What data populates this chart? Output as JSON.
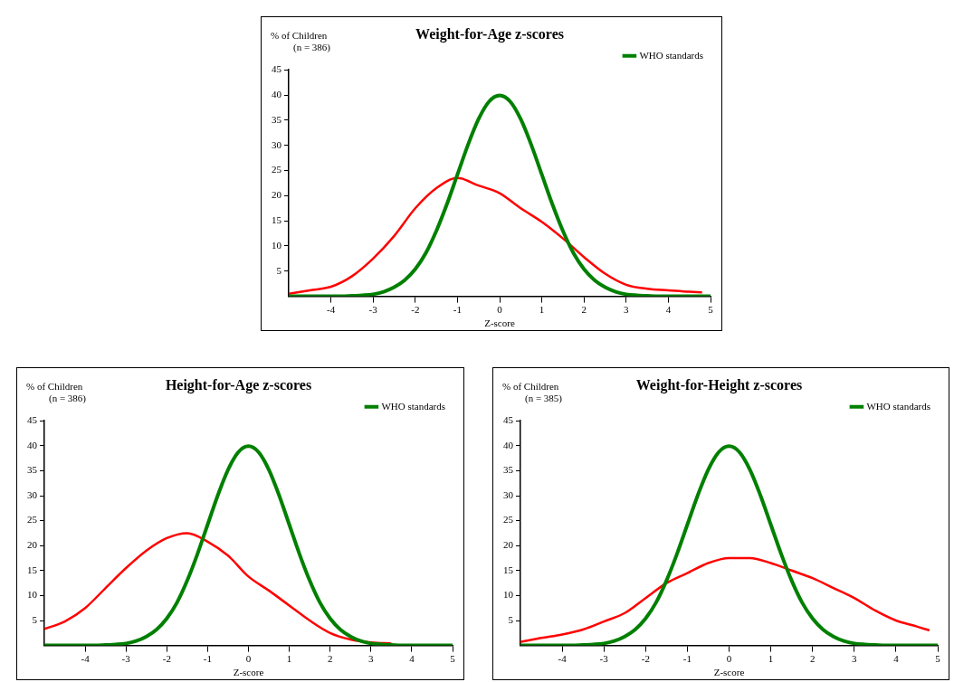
{
  "chart_data": [
    {
      "type": "line",
      "title": "Weight-for-Age z-scores",
      "subtitle": "(n = 386)",
      "ylabel": "% of Children",
      "xlabel": "Z-score",
      "xlim": [
        -5,
        5
      ],
      "xticks": [
        -4,
        -3,
        -2,
        -1,
        0,
        1,
        2,
        3,
        4,
        5
      ],
      "ylim": [
        0,
        45
      ],
      "yticks": [
        5,
        10,
        15,
        20,
        25,
        30,
        35,
        40,
        45
      ],
      "legend": "top right",
      "series": [
        {
          "name": "WHO standards",
          "color": "#008000",
          "x": [
            -5,
            -4.75,
            -4.5,
            -4.25,
            -4,
            -3.75,
            -3.5,
            -3.25,
            -3,
            -2.75,
            -2.5,
            -2.25,
            -2,
            -1.75,
            -1.5,
            -1.25,
            -1,
            -0.75,
            -0.5,
            -0.25,
            0,
            0.25,
            0.5,
            0.75,
            1,
            1.25,
            1.5,
            1.75,
            2,
            2.25,
            2.5,
            2.75,
            3,
            3.25,
            3.5,
            3.75,
            4,
            4.25,
            4.5,
            4.75,
            5
          ],
          "values": [
            0,
            0,
            0,
            0,
            0,
            0,
            0.1,
            0.2,
            0.4,
            0.9,
            1.8,
            3.2,
            5.4,
            8.6,
            13,
            18.3,
            24.2,
            30.1,
            35.2,
            38.7,
            39.9,
            38.7,
            35.2,
            30.1,
            24.2,
            18.3,
            13,
            8.6,
            5.4,
            3.2,
            1.8,
            0.9,
            0.4,
            0.2,
            0.1,
            0,
            0,
            0,
            0,
            0,
            0
          ]
        },
        {
          "color": "#ff0000",
          "x": [
            -5,
            -4.5,
            -4,
            -3.5,
            -3,
            -2.5,
            -2,
            -1.5,
            -1,
            -0.5,
            0,
            0.5,
            1,
            1.5,
            2,
            2.5,
            3,
            3.5,
            4,
            4.5,
            4.8
          ],
          "values": [
            0.5,
            1.2,
            1.9,
            4,
            7.5,
            12,
            17.5,
            21.5,
            23.5,
            22,
            20.5,
            17.5,
            14.8,
            11.5,
            7.8,
            4.5,
            2.3,
            1.5,
            1.2,
            0.9,
            0.8
          ]
        }
      ]
    },
    {
      "type": "line",
      "title": "Height-for-Age z-scores",
      "subtitle": "(n = 386)",
      "ylabel": "% of Children",
      "xlabel": "Z-score",
      "xlim": [
        -5,
        5
      ],
      "xticks": [
        -4,
        -3,
        -2,
        -1,
        0,
        1,
        2,
        3,
        4,
        5
      ],
      "ylim": [
        0,
        45
      ],
      "yticks": [
        5,
        10,
        15,
        20,
        25,
        30,
        35,
        40,
        45
      ],
      "legend": "top right",
      "series": [
        {
          "name": "WHO standards",
          "color": "#008000",
          "x": [
            -5,
            -4.75,
            -4.5,
            -4.25,
            -4,
            -3.75,
            -3.5,
            -3.25,
            -3,
            -2.75,
            -2.5,
            -2.25,
            -2,
            -1.75,
            -1.5,
            -1.25,
            -1,
            -0.75,
            -0.5,
            -0.25,
            0,
            0.25,
            0.5,
            0.75,
            1,
            1.25,
            1.5,
            1.75,
            2,
            2.25,
            2.5,
            2.75,
            3,
            3.25,
            3.5,
            3.75,
            4,
            4.25,
            4.5,
            4.75,
            5
          ],
          "values": [
            0,
            0,
            0,
            0,
            0,
            0,
            0.1,
            0.2,
            0.4,
            0.9,
            1.8,
            3.2,
            5.4,
            8.6,
            13,
            18.3,
            24.2,
            30.1,
            35.2,
            38.7,
            39.9,
            38.7,
            35.2,
            30.1,
            24.2,
            18.3,
            13,
            8.6,
            5.4,
            3.2,
            1.8,
            0.9,
            0.4,
            0.2,
            0.1,
            0,
            0,
            0,
            0,
            0,
            0
          ]
        },
        {
          "color": "#ff0000",
          "x": [
            -5,
            -4.5,
            -4,
            -3.5,
            -3,
            -2.5,
            -2,
            -1.5,
            -1,
            -0.5,
            0,
            0.5,
            1,
            1.5,
            2,
            2.5,
            3,
            3.5
          ],
          "values": [
            3.3,
            4.8,
            7.5,
            11.5,
            15.5,
            19,
            21.5,
            22.5,
            20.8,
            18,
            13.8,
            11,
            8,
            5,
            2.5,
            1.2,
            0.6,
            0.4
          ]
        }
      ]
    },
    {
      "type": "line",
      "title": "Weight-for-Height z-scores",
      "subtitle": "(n = 385)",
      "ylabel": "% of Children",
      "xlabel": "Z-score",
      "xlim": [
        -5,
        5
      ],
      "xticks": [
        -4,
        -3,
        -2,
        -1,
        0,
        1,
        2,
        3,
        4,
        5
      ],
      "ylim": [
        0,
        45
      ],
      "yticks": [
        5,
        10,
        15,
        20,
        25,
        30,
        35,
        40,
        45
      ],
      "legend": "top right",
      "series": [
        {
          "name": "WHO standards",
          "color": "#008000",
          "x": [
            -5,
            -4.75,
            -4.5,
            -4.25,
            -4,
            -3.75,
            -3.5,
            -3.25,
            -3,
            -2.75,
            -2.5,
            -2.25,
            -2,
            -1.75,
            -1.5,
            -1.25,
            -1,
            -0.75,
            -0.5,
            -0.25,
            0,
            0.25,
            0.5,
            0.75,
            1,
            1.25,
            1.5,
            1.75,
            2,
            2.25,
            2.5,
            2.75,
            3,
            3.25,
            3.5,
            3.75,
            4,
            4.25,
            4.5,
            4.75,
            5
          ],
          "values": [
            0,
            0,
            0,
            0,
            0,
            0,
            0.1,
            0.2,
            0.4,
            0.9,
            1.8,
            3.2,
            5.4,
            8.6,
            13,
            18.3,
            24.2,
            30.1,
            35.2,
            38.7,
            39.9,
            38.7,
            35.2,
            30.1,
            24.2,
            18.3,
            13,
            8.6,
            5.4,
            3.2,
            1.8,
            0.9,
            0.4,
            0.2,
            0.1,
            0,
            0,
            0,
            0,
            0,
            0
          ]
        },
        {
          "color": "#ff0000",
          "x": [
            -5,
            -4.5,
            -4,
            -3.5,
            -3,
            -2.5,
            -2,
            -1.5,
            -1,
            -0.5,
            0,
            0.5,
            1,
            1.5,
            2,
            2.5,
            3,
            3.5,
            4,
            4.5,
            4.8
          ],
          "values": [
            0.7,
            1.5,
            2.2,
            3.2,
            4.8,
            6.5,
            9.5,
            12.5,
            14.5,
            16.5,
            17.5,
            17.5,
            16.5,
            15,
            13.5,
            11.5,
            9.5,
            7,
            5,
            3.8,
            3
          ]
        }
      ]
    }
  ]
}
